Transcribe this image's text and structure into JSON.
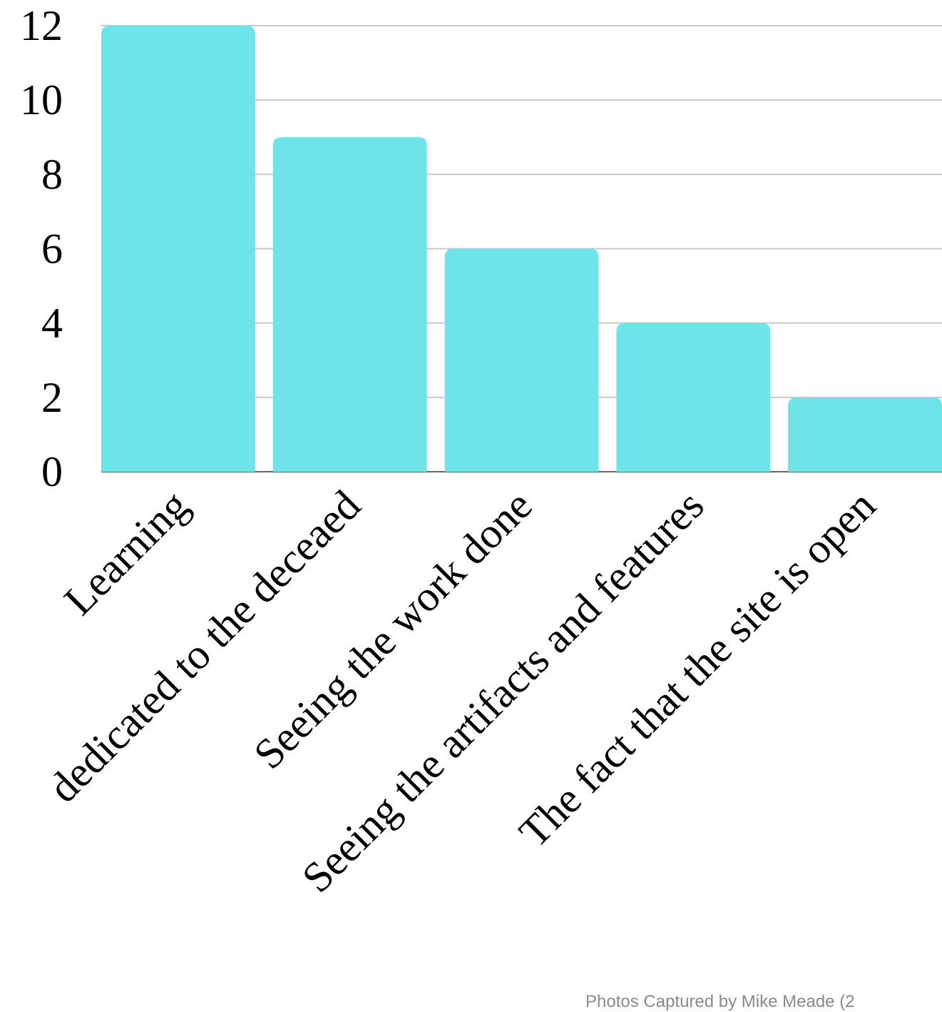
{
  "chart_data": {
    "type": "bar",
    "categories": [
      "Learning",
      "dedicated to the deceaed",
      "Seeing the work done",
      "Seeing the artifacts and features",
      "The fact that the site is open"
    ],
    "values": [
      12,
      9,
      6,
      4,
      2
    ],
    "ylim": [
      0,
      12
    ],
    "yticks": [
      "0",
      "2",
      "4",
      "6",
      "8",
      "10",
      "12"
    ],
    "grid": true,
    "colors": {
      "bar": "#6ce4e8",
      "grid": "#c8c8c8",
      "baseline": "#666666",
      "text": "#000000"
    }
  },
  "footer": {
    "credit": "Photos Captured by Mike Meade (2"
  }
}
